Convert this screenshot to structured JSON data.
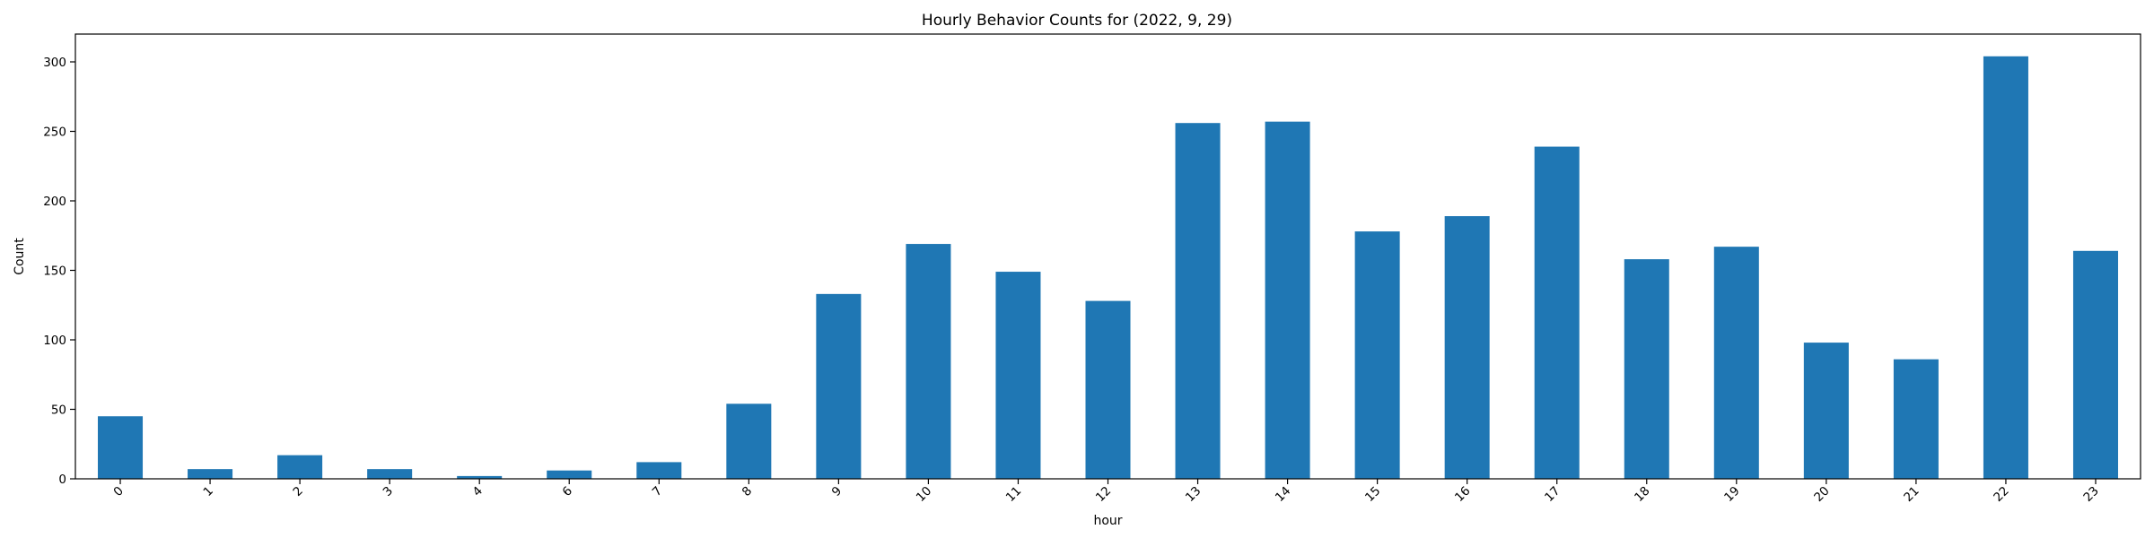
{
  "chart_data": {
    "type": "bar",
    "title": "Hourly Behavior Counts for (2022, 9, 29)",
    "xlabel": "hour",
    "ylabel": "Count",
    "categories": [
      "0",
      "1",
      "2",
      "3",
      "4",
      "6",
      "7",
      "8",
      "9",
      "10",
      "11",
      "12",
      "13",
      "14",
      "15",
      "16",
      "17",
      "18",
      "19",
      "20",
      "21",
      "22",
      "23"
    ],
    "values": [
      45,
      7,
      17,
      7,
      2,
      6,
      12,
      54,
      133,
      169,
      149,
      128,
      256,
      257,
      178,
      189,
      239,
      158,
      167,
      98,
      86,
      304,
      164
    ],
    "ylim": [
      0,
      320
    ],
    "yticks": [
      0,
      50,
      100,
      150,
      200,
      250,
      300
    ],
    "bar_color": "#1f77b4",
    "grid": false,
    "legend": "none",
    "xtick_rotation": -45
  }
}
